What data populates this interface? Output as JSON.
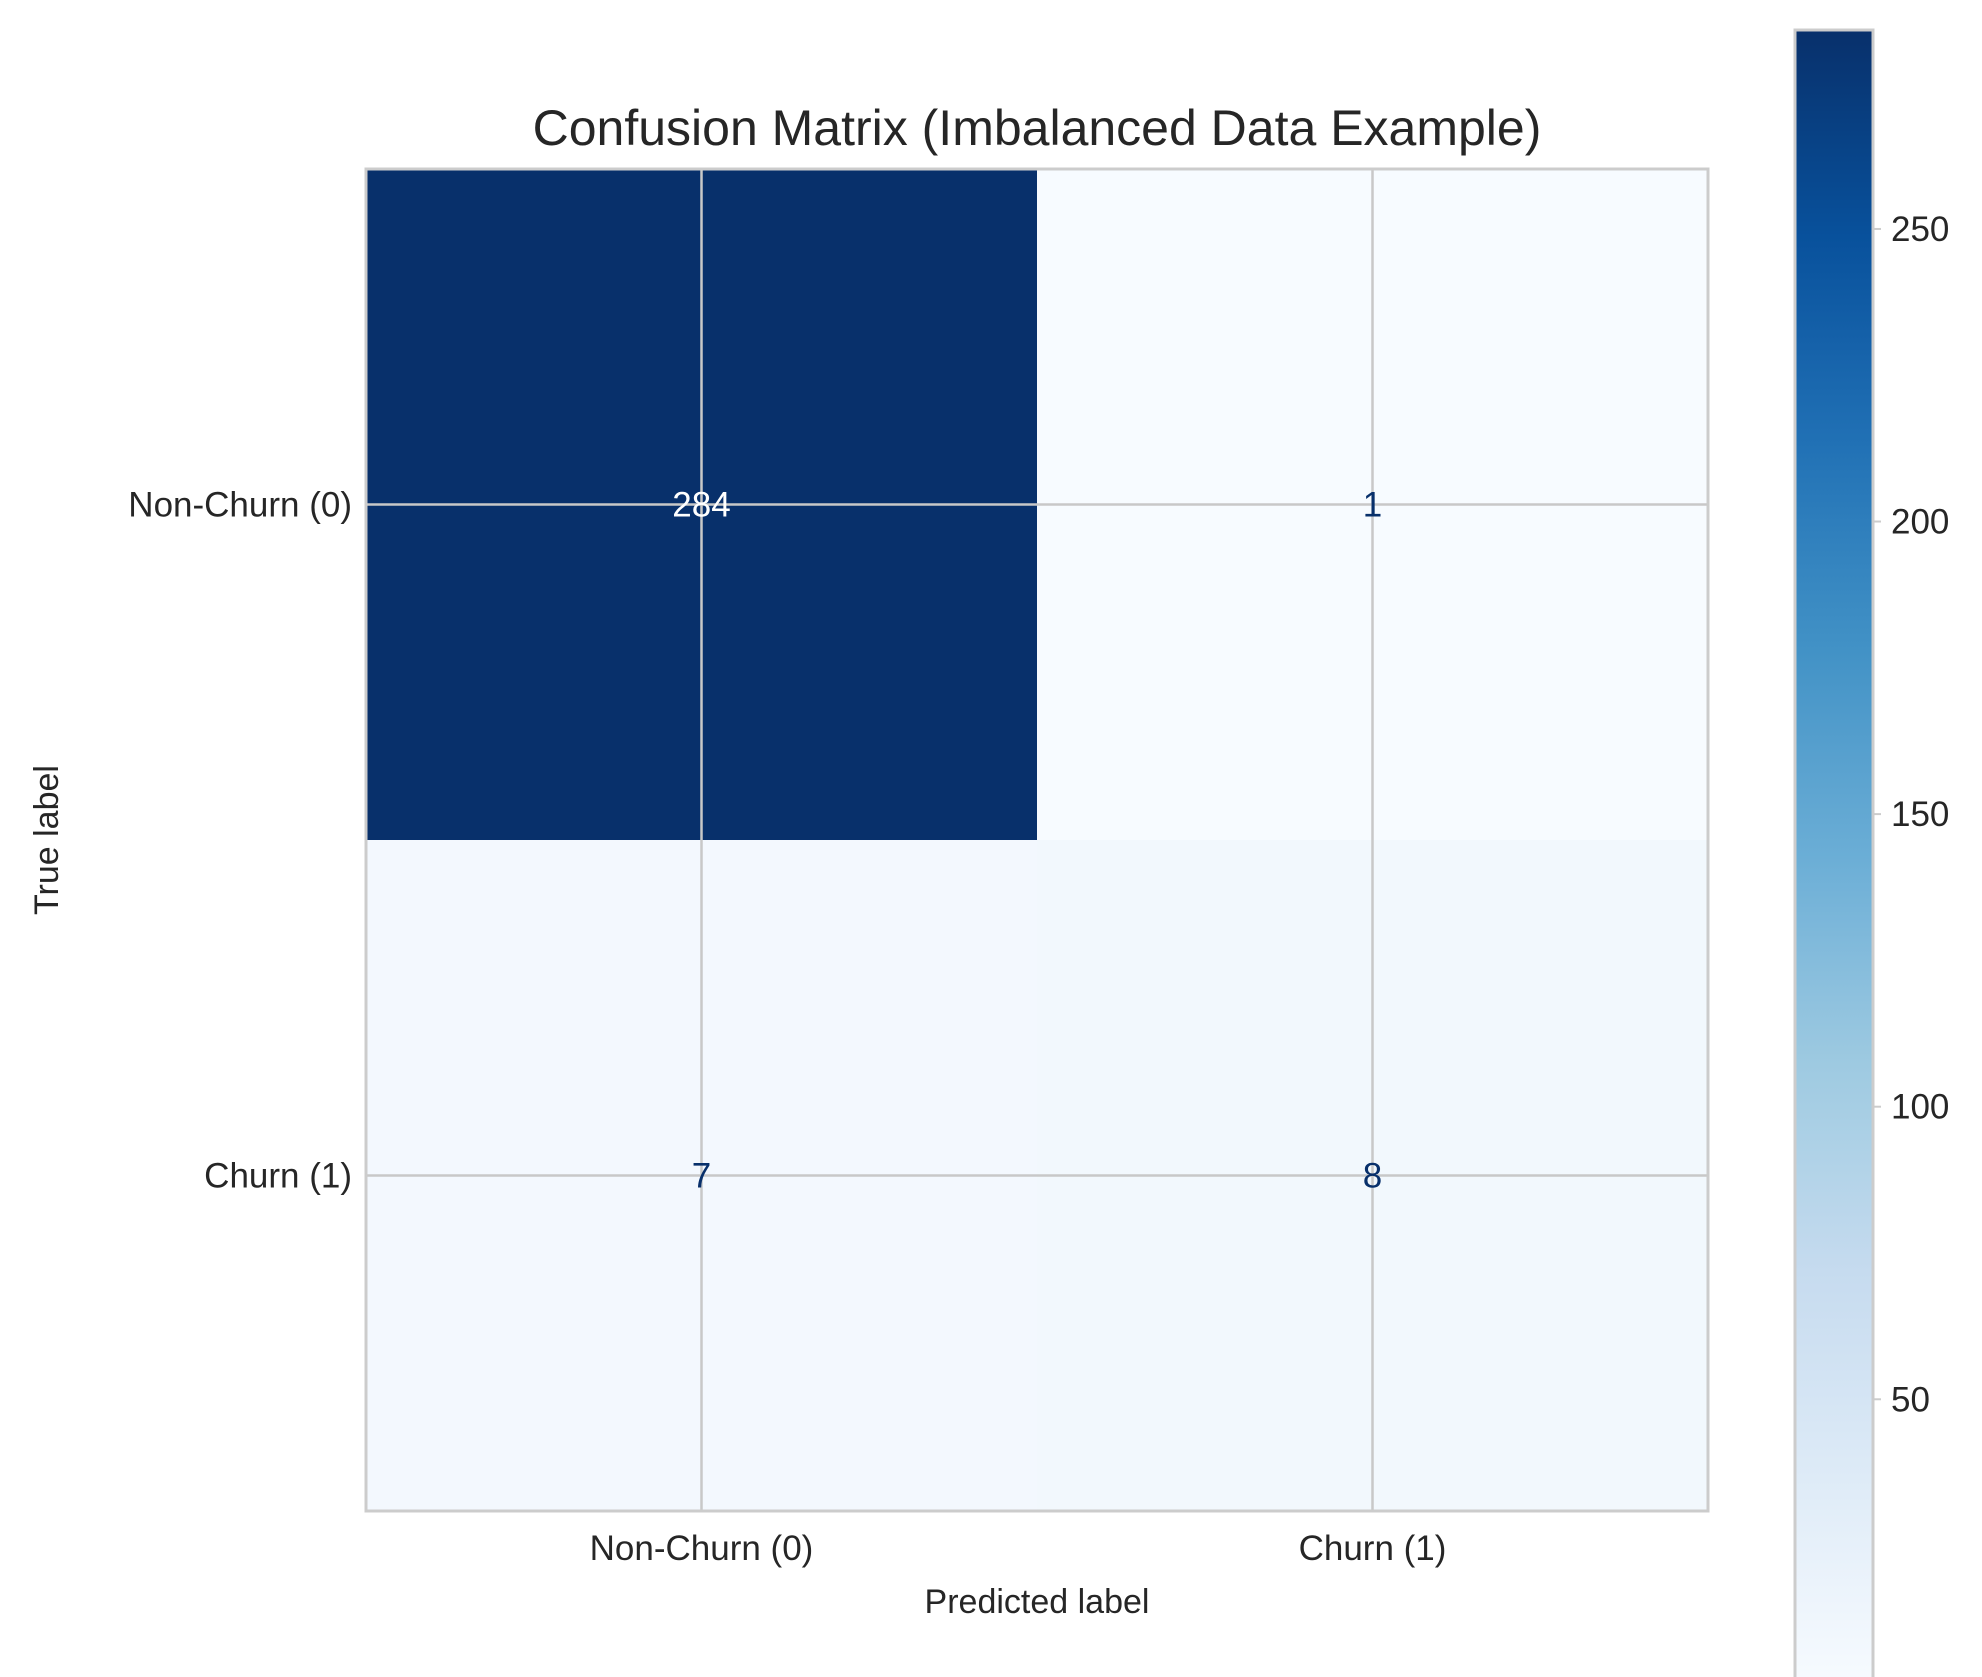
{
  "chart_data": {
    "type": "heatmap",
    "title": "Confusion Matrix (Imbalanced Data Example)",
    "xlabel": "Predicted label",
    "ylabel": "True label",
    "x_categories": [
      "Non-Churn (0)",
      "Churn (1)"
    ],
    "y_categories": [
      "Non-Churn (0)",
      "Churn (1)"
    ],
    "matrix": [
      [
        284,
        1
      ],
      [
        7,
        8
      ]
    ],
    "colormap": "Blues",
    "color_range": [
      1,
      284
    ],
    "colorbar_ticks": [
      50,
      100,
      150,
      200,
      250
    ],
    "grid": true
  },
  "colors": {
    "axis_edge": "#cccccc",
    "grid": "#c8c8c8",
    "text": "#262626",
    "cell_text_dark": "#08306b",
    "cell_text_light": "#ffffff"
  }
}
